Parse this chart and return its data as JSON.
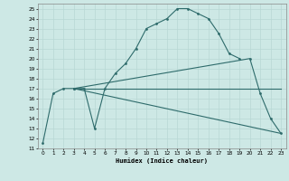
{
  "title": "",
  "xlabel": "Humidex (Indice chaleur)",
  "xlim": [
    -0.5,
    23.5
  ],
  "ylim": [
    11,
    25.5
  ],
  "yticks": [
    11,
    12,
    13,
    14,
    15,
    16,
    17,
    18,
    19,
    20,
    21,
    22,
    23,
    24,
    25
  ],
  "xticks": [
    0,
    1,
    2,
    3,
    4,
    5,
    6,
    7,
    8,
    9,
    10,
    11,
    12,
    13,
    14,
    15,
    16,
    17,
    18,
    19,
    20,
    21,
    22,
    23
  ],
  "bg_color": "#cde8e5",
  "line_color": "#2e6b6b",
  "grid_color": "#b8d8d4",
  "curve1_x": [
    0,
    1,
    2,
    3,
    4,
    5,
    6,
    7,
    8,
    9,
    10,
    11,
    12,
    13,
    14,
    15,
    16,
    17,
    18,
    19
  ],
  "curve1_y": [
    11.5,
    16.5,
    17,
    17,
    17,
    13,
    17,
    18.5,
    19.5,
    21,
    23,
    23.5,
    24,
    25,
    25,
    24.5,
    24,
    22.5,
    20.5,
    20
  ],
  "curve2_x": [
    3,
    20,
    21,
    22,
    23
  ],
  "curve2_y": [
    17,
    20,
    16.5,
    14,
    12.5
  ],
  "line3_x": [
    3,
    23
  ],
  "line3_y": [
    17,
    17
  ],
  "line4_x": [
    3,
    23
  ],
  "line4_y": [
    17,
    12.5
  ]
}
